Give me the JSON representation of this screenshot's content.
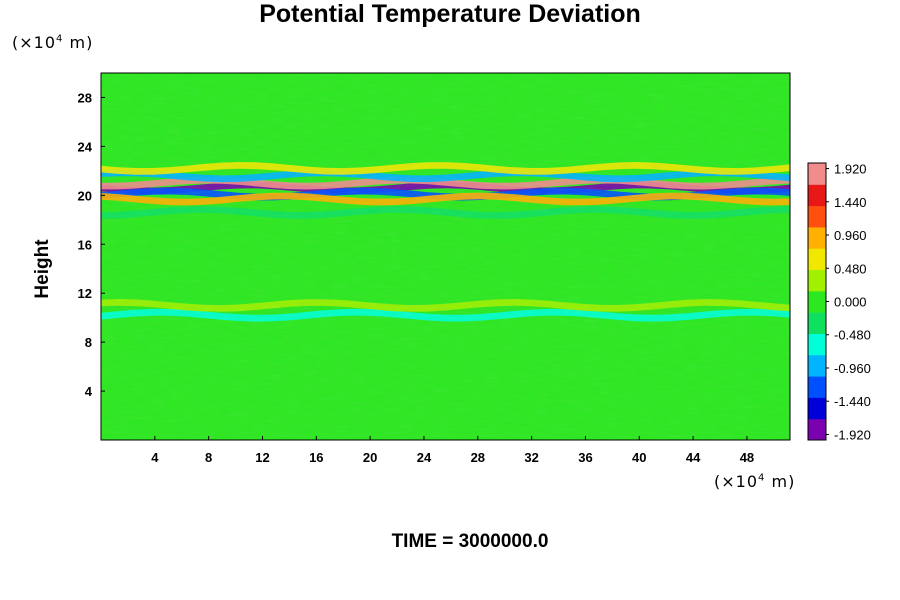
{
  "chart_data": {
    "type": "heatmap",
    "title": "Potential Temperature Deviation",
    "xlabel": "",
    "ylabel": "Height",
    "x_units": "(×10⁴ m)",
    "y_units": "(×10⁴ m)",
    "footer": "TIME = 3000000.0",
    "xlim": [
      0,
      51.2
    ],
    "ylim": [
      0,
      30
    ],
    "x_ticks": [
      4,
      8,
      12,
      16,
      20,
      24,
      28,
      32,
      36,
      40,
      44,
      48
    ],
    "y_ticks": [
      4,
      8,
      12,
      16,
      20,
      24,
      28
    ],
    "colorbar": {
      "min": -2.0,
      "max": 2.0,
      "tick_values": [
        1.92,
        1.44,
        0.96,
        0.48,
        0.0,
        -0.48,
        -0.96,
        -1.44,
        -1.92
      ],
      "tick_labels": [
        "1.920",
        "1.440",
        "0.960",
        "0.480",
        "0.000",
        "-0.480",
        "-0.960",
        "-1.440",
        "-1.920"
      ],
      "colors": [
        "#7a00b0",
        "#0000d8",
        "#0050ff",
        "#00b4ff",
        "#00ffd8",
        "#10e060",
        "#2ce820",
        "#a0f000",
        "#f0e800",
        "#ffb000",
        "#ff5010",
        "#e81818",
        "#f08c8c"
      ]
    },
    "field_description_bands": [
      {
        "y_center": 20.6,
        "value": -1.9
      },
      {
        "y_center": 21.0,
        "value": 1.9
      },
      {
        "y_center": 20.1,
        "value": -1.2
      },
      {
        "y_center": 21.6,
        "value": -0.9
      },
      {
        "y_center": 19.7,
        "value": 0.9
      },
      {
        "y_center": 22.2,
        "value": 0.5
      },
      {
        "y_center": 18.6,
        "value": -0.3
      },
      {
        "y_center": 10.2,
        "value": -0.5
      },
      {
        "y_center": 11.0,
        "value": 0.4
      }
    ]
  }
}
